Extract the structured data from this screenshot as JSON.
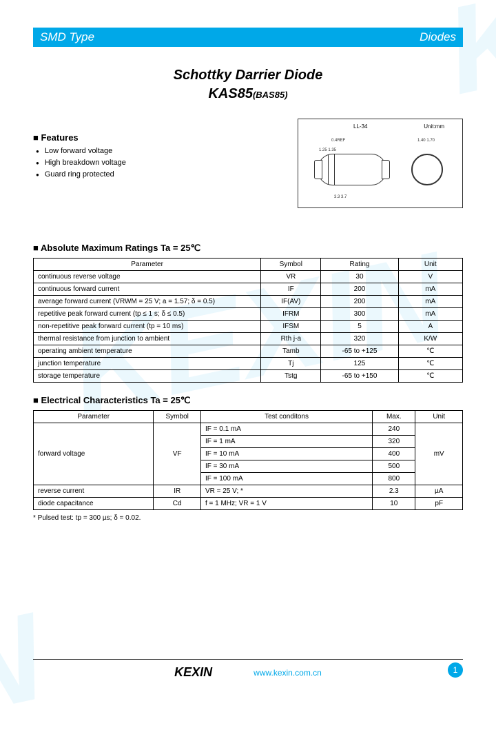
{
  "header": {
    "left": "SMD Type",
    "right": "Diodes"
  },
  "title": {
    "main": "Schottky Darrier Diode",
    "part": "KAS85",
    "alt": "(BAS85)"
  },
  "features": {
    "heading": "Features",
    "items": [
      "Low forward voltage",
      "High breakdown voltage",
      "Guard ring protected"
    ]
  },
  "diagram": {
    "pkg_label": "LL-34",
    "dim_label": "Unit:mm",
    "dims": {
      "top": "0.4REF",
      "left": "1.25\n1.35",
      "bottom": "3.3\n3.7",
      "circle": "1.40\n1.70"
    }
  },
  "amr": {
    "heading": "Absolute Maximum Ratings Ta = 25℃",
    "columns": [
      "Parameter",
      "Symbol",
      "Rating",
      "Unit"
    ],
    "rows": [
      [
        "continuous reverse voltage",
        "VR",
        "30",
        "V"
      ],
      [
        "continuous forward current",
        "IF",
        "200",
        "mA"
      ],
      [
        "average forward current  (VRWM = 25 V; a = 1.57; δ = 0.5)",
        "IF(AV)",
        "200",
        "mA"
      ],
      [
        "repetitive peak forward current  (tp ≤ 1 s; δ ≤ 0.5)",
        "IFRM",
        "300",
        "mA"
      ],
      [
        "non-repetitive peak forward current (tp = 10 ms)",
        "IFSM",
        "5",
        "A"
      ],
      [
        "thermal resistance from junction to ambient",
        "Rth j-a",
        "320",
        "K/W"
      ],
      [
        "operating ambient temperature",
        "Tamb",
        "-65 to +125",
        "℃"
      ],
      [
        "junction temperature",
        "Tj",
        "125",
        "℃"
      ],
      [
        "storage temperature",
        "Tstg",
        "-65 to +150",
        "℃"
      ]
    ]
  },
  "elec": {
    "heading": "Electrical Characteristics Ta = 25℃",
    "columns": [
      "Parameter",
      "Symbol",
      "Test conditons",
      "Max.",
      "Unit"
    ],
    "fv": {
      "param": "forward voltage",
      "symbol": "VF",
      "unit": "mV",
      "rows": [
        [
          "IF = 0.1 mA",
          "240"
        ],
        [
          "IF = 1 mA",
          "320"
        ],
        [
          "IF = 10 mA",
          "400"
        ],
        [
          "IF = 30 mA",
          "500"
        ],
        [
          "IF = 100 mA",
          "800"
        ]
      ]
    },
    "other": [
      [
        "reverse current",
        "IR",
        "VR = 25 V; *",
        "2.3",
        "µA"
      ],
      [
        "diode capacitance",
        "Cd",
        "f = 1 MHz; VR = 1 V",
        "10",
        "pF"
      ]
    ],
    "footnote": "* Pulsed test: tp = 300 µs; δ = 0.02."
  },
  "footer": {
    "logo": "KEXIN",
    "url": "www.kexin.com.cn",
    "page": "1"
  },
  "colors": {
    "accent": "#00a8e8"
  }
}
